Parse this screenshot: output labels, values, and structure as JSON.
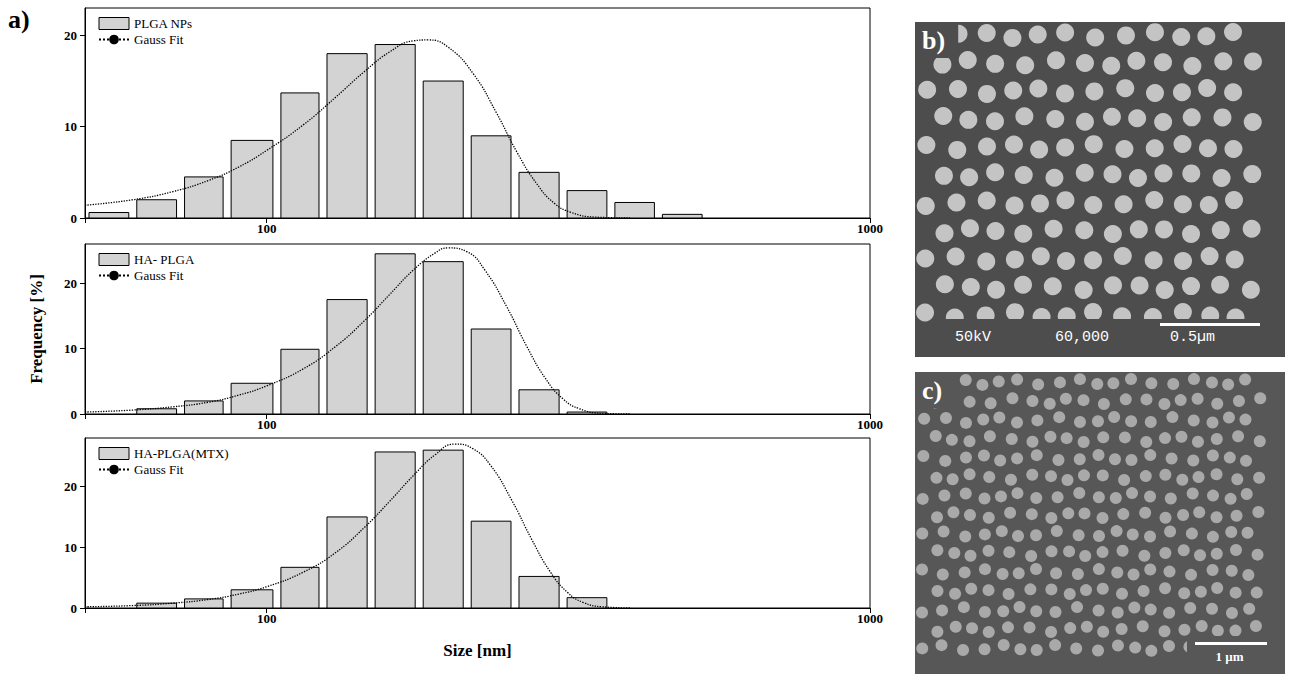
{
  "figure_label": "a)",
  "xlabel": "Size [nm]",
  "ylabel": "Frequency [%]",
  "chart_data": [
    {
      "type": "histogram",
      "log": "x",
      "legend": "upper left",
      "xlim": [
        50,
        1000
      ],
      "xticks": [
        100,
        1000
      ],
      "ylim": [
        0,
        23
      ],
      "yticks": [
        0,
        10,
        20
      ],
      "bins": [
        50,
        60,
        72,
        86,
        104,
        124,
        149,
        179,
        215,
        258,
        310,
        372,
        446,
        535
      ],
      "series": [
        {
          "name": "PLGA NPs",
          "type": "bar",
          "color": "#d3d3d3",
          "values": [
            0.6,
            2,
            4.5,
            8.5,
            13.7,
            18,
            19,
            15,
            9,
            5,
            3,
            1.7,
            0.4
          ]
        },
        {
          "name": "Gauss Fit",
          "type": "line",
          "line_style": "dotted",
          "color": "#000000",
          "x": [
            50,
            60,
            70,
            80,
            90,
            100,
            115,
            130,
            145,
            160,
            175,
            185,
            200,
            220,
            240,
            260,
            280,
            300,
            320,
            350,
            400
          ],
          "values": [
            1.4,
            2.0,
            2.9,
            4.1,
            5.6,
            7.4,
            10.2,
            13.2,
            16.0,
            18.2,
            19.4,
            19.5,
            18.7,
            15.8,
            11.6,
            7.2,
            3.8,
            1.6,
            0.6,
            0.1,
            0
          ]
        }
      ]
    },
    {
      "type": "histogram",
      "log": "x",
      "legend": "upper left",
      "xlim": [
        50,
        1000
      ],
      "xticks": [
        100,
        1000
      ],
      "ylim": [
        0,
        26
      ],
      "yticks": [
        0,
        10,
        20
      ],
      "bins": [
        50,
        60,
        72,
        86,
        104,
        124,
        149,
        179,
        215,
        258,
        310,
        372,
        446,
        535
      ],
      "series": [
        {
          "name": "HA- PLGA",
          "type": "bar",
          "color": "#d3d3d3",
          "values": [
            0,
            0.8,
            2,
            4.7,
            9.9,
            17.5,
            24.5,
            23.3,
            13,
            3.7,
            0.3,
            0,
            0
          ]
        },
        {
          "name": "Gauss Fit",
          "type": "line",
          "line_style": "dotted",
          "color": "#000000",
          "x": [
            50,
            60,
            70,
            80,
            90,
            100,
            115,
            130,
            145,
            160,
            175,
            190,
            200,
            215,
            230,
            250,
            270,
            290,
            310,
            330,
            360,
            400
          ],
          "values": [
            0.3,
            0.6,
            1.1,
            1.8,
            2.9,
            4.3,
            6.9,
            10.3,
            14.2,
            18.3,
            22.0,
            24.6,
            25.4,
            24.8,
            22.0,
            16.4,
            10.3,
            5.4,
            2.3,
            0.8,
            0.1,
            0
          ]
        }
      ]
    },
    {
      "type": "histogram",
      "log": "x",
      "legend": "upper left",
      "xlim": [
        50,
        1000
      ],
      "xticks": [
        100,
        1000
      ],
      "ylim": [
        0,
        28
      ],
      "yticks": [
        0,
        10,
        20
      ],
      "bins": [
        50,
        60,
        72,
        86,
        104,
        124,
        149,
        179,
        215,
        258,
        310,
        372,
        446,
        535
      ],
      "series": [
        {
          "name": "HA-PLGA(MTX)",
          "type": "bar",
          "color": "#d3d3d3",
          "values": [
            0,
            0.8,
            1.5,
            3,
            6.7,
            15,
            25.7,
            26,
            14.3,
            5.2,
            1.7,
            0,
            0
          ]
        },
        {
          "name": "Gauss Fit",
          "type": "line",
          "line_style": "dotted",
          "color": "#000000",
          "x": [
            50,
            60,
            70,
            80,
            90,
            100,
            115,
            130,
            145,
            160,
            175,
            190,
            205,
            220,
            235,
            255,
            275,
            295,
            315,
            335,
            360,
            400
          ],
          "values": [
            0.2,
            0.4,
            0.8,
            1.4,
            2.3,
            3.5,
            5.9,
            9.1,
            13.2,
            17.6,
            21.8,
            25.2,
            27.0,
            26.2,
            23.5,
            17.7,
            11.3,
            6.0,
            2.6,
            0.9,
            0.2,
            0
          ]
        }
      ]
    }
  ],
  "images": [
    {
      "label": "b)",
      "texts": [
        "50kV",
        "60,000",
        "0.5µm"
      ]
    },
    {
      "label": "c)",
      "texts": [
        "1 µm"
      ]
    }
  ]
}
